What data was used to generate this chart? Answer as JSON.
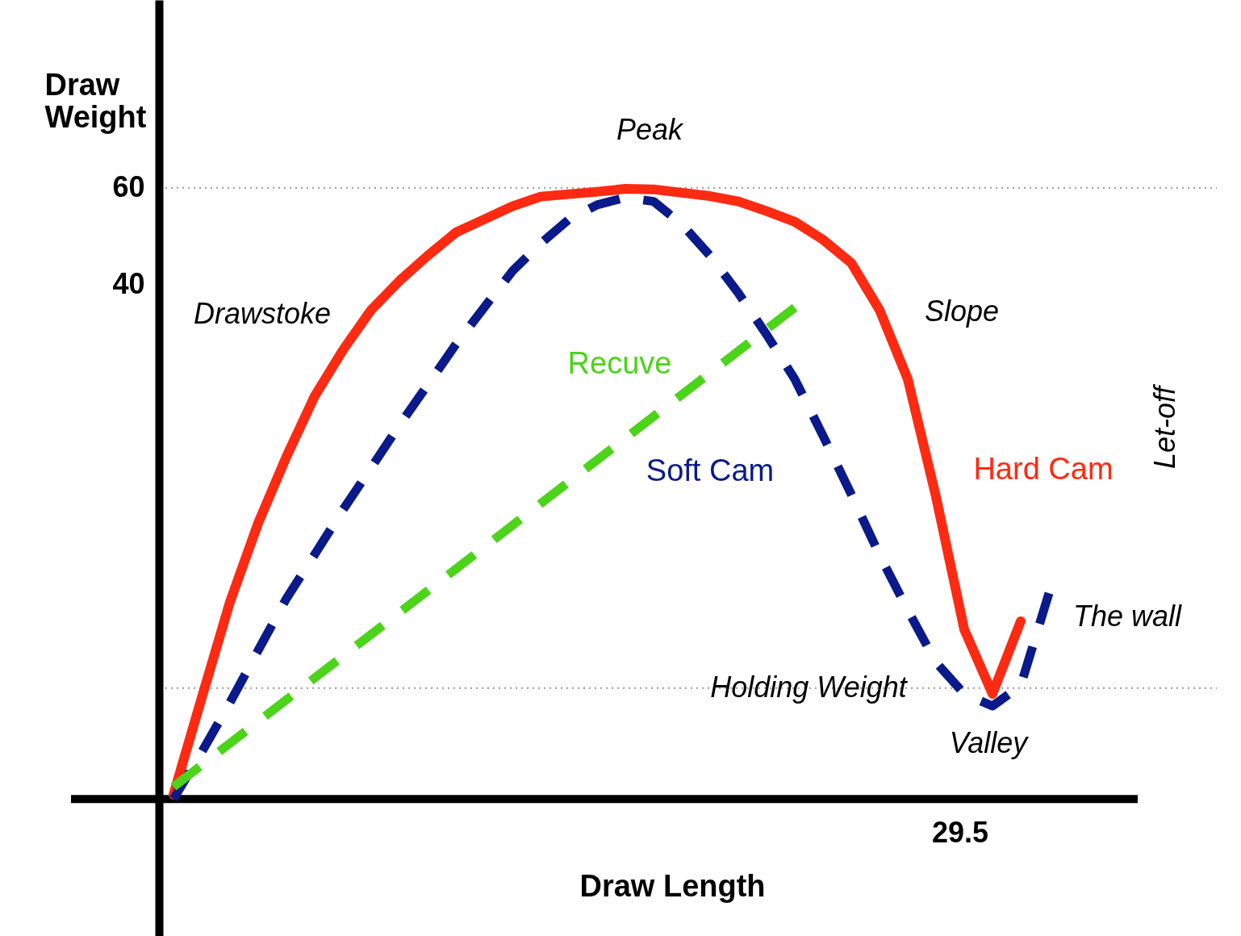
{
  "chart_data": {
    "type": "line",
    "xlabel": "Draw Length",
    "ylabel": "Draw Weight",
    "categories": [
      null,
      null,
      null,
      null,
      null,
      null,
      null,
      null,
      null,
      null,
      null,
      null,
      null,
      null,
      null,
      null,
      null,
      null,
      null,
      null,
      null,
      null,
      null,
      null,
      null,
      null,
      null,
      null,
      null,
      null,
      null,
      null
    ],
    "ylim": [
      -94.5,
      98.8
    ],
    "yticks": [
      60,
      40
    ],
    "grid": false,
    "series": [
      {
        "color": "#ff2a12",
        "line_style": "solid",
        "values": [
          -65.3,
          -45.3,
          -25.5,
          -9.2,
          4.5,
          17,
          26.5,
          34.8,
          40.8,
          46,
          50.8,
          53.5,
          56.2,
          58.2,
          58.7,
          59.2,
          59.8,
          59.7,
          59,
          58.3,
          57.2,
          55.2,
          53,
          49.3,
          44.5,
          34.8,
          20.5,
          -3.8,
          -31.2,
          -44.5,
          -29.5,
          null
        ]
      },
      {
        "color": "#0a1a8a",
        "line_style": "dashed",
        "values": [
          -66.2,
          -56.5,
          -46.3,
          -35.5,
          -24.8,
          -15.7,
          -6.5,
          2.2,
          11,
          19.3,
          27.7,
          35.3,
          42.8,
          48.5,
          53.5,
          56.5,
          58,
          57.2,
          52.5,
          46,
          38.3,
          29.7,
          20.5,
          8.8,
          -3.3,
          -15.8,
          -27.2,
          -38,
          -44.5,
          -47,
          -42.8,
          -23.7
        ]
      },
      {
        "color": "#4cd41a",
        "line_style": "dashed",
        "values": [
          -63.7,
          -59.2,
          -54.7,
          -50.2,
          -45.7,
          -41.2,
          -36.7,
          -32.2,
          -27.7,
          -23.2,
          -18.7,
          -14.2,
          -9.7,
          -5.2,
          -0.7,
          3.8,
          8.3,
          12.8,
          17.3,
          21.8,
          26.3,
          30.8,
          35.3,
          null,
          null,
          null,
          null,
          null,
          null,
          null,
          null,
          null
        ]
      }
    ],
    "ref_lines": [
      {
        "axis": "y",
        "value": -66.2,
        "label": null,
        "color": "#000000",
        "line_style": "solid"
      },
      {
        "axis": "y",
        "value": 60,
        "label": null,
        "color": "#999999",
        "line_style": "dotted"
      },
      {
        "axis": "y",
        "value": -43.3,
        "label": "Holding Weight",
        "color": "#999999",
        "line_style": "dotted"
      }
    ],
    "annotations": [
      "Hard Cam",
      "Soft Cam",
      "Recuve",
      "Peak",
      "Drawstoke",
      "Slope",
      "The wall",
      "Valley",
      "29.5",
      "Let-off"
    ]
  }
}
